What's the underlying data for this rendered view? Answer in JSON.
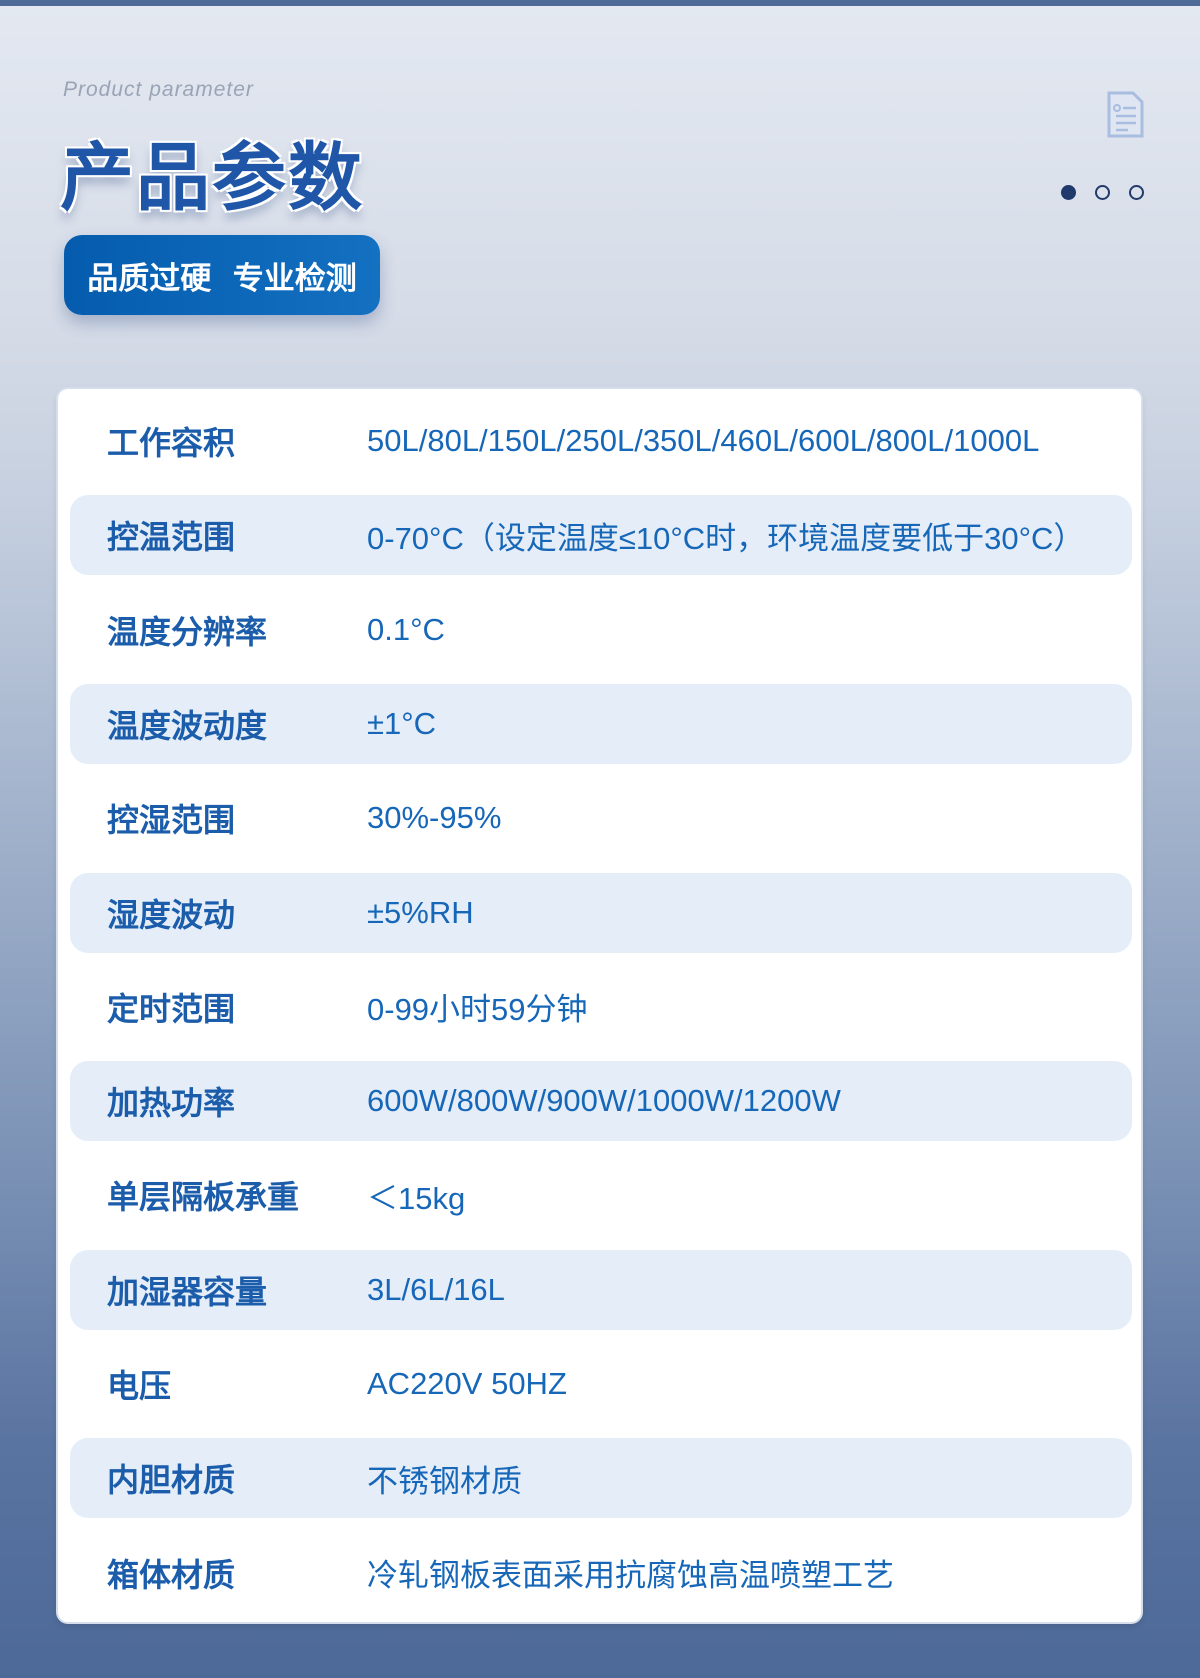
{
  "header": {
    "subtitle": "Product parameter",
    "title": "产品参数",
    "badge": "品质过硬  专业检测",
    "icon": "document-icon",
    "pager": {
      "count": 3,
      "active": 0
    }
  },
  "colors": {
    "primary": "#1b5dab",
    "badge": "#0a64b6",
    "row_alt": "#e4edf8"
  },
  "params": [
    {
      "label": "工作容积",
      "value": "50L/80L/150L/250L/350L/460L/600L/800L/1000L"
    },
    {
      "label": "控温范围",
      "value": "0-70°C（设定温度≤10°C时，环境温度要低于30°C）"
    },
    {
      "label": "温度分辨率",
      "value": "0.1°C"
    },
    {
      "label": "温度波动度",
      "value": "±1°C"
    },
    {
      "label": "控湿范围",
      "value": "30%-95%"
    },
    {
      "label": "湿度波动",
      "value": "±5%RH"
    },
    {
      "label": "定时范围",
      "value": "0-99小时59分钟"
    },
    {
      "label": "加热功率",
      "value": "600W/800W/900W/1000W/1200W"
    },
    {
      "label": "单层隔板承重",
      "value": "＜15kg"
    },
    {
      "label": "加湿器容量",
      "value": "3L/6L/16L"
    },
    {
      "label": "电压",
      "value": "AC220V 50HZ"
    },
    {
      "label": "内胆材质",
      "value": "不锈钢材质"
    },
    {
      "label": "箱体材质",
      "value": "冷轧钢板表面采用抗腐蚀高温喷塑工艺"
    }
  ]
}
